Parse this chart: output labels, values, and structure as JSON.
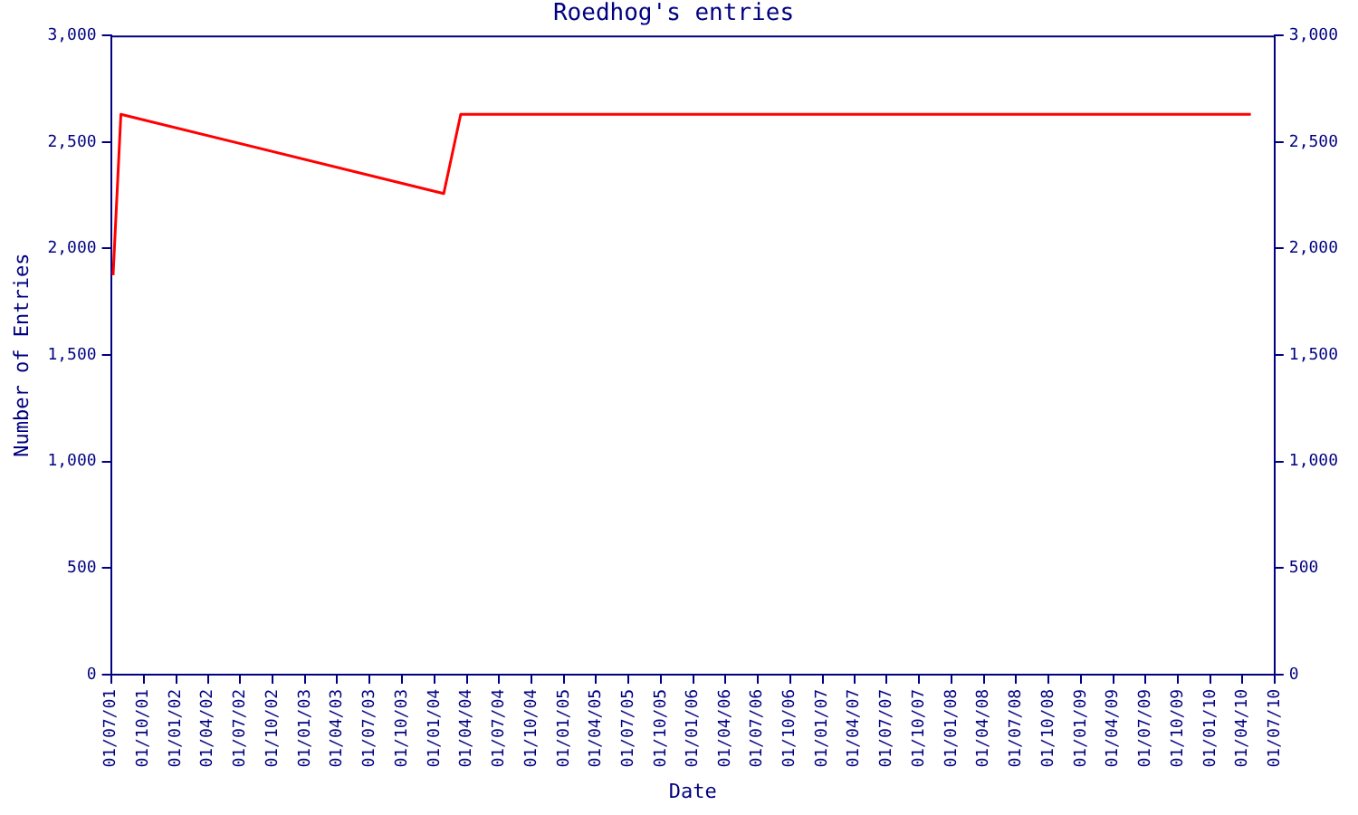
{
  "chart_data": {
    "type": "line",
    "title": "Roedhog's entries",
    "xlabel": "Date",
    "ylabel": "Number of Entries",
    "x": [
      "2001-07-07",
      "2001-07-29",
      "2004-01-27",
      "2004-03-15",
      "2010-04-25"
    ],
    "series": [
      {
        "color": "#ff0000",
        "values": [
          1875,
          2630,
          2258,
          2630,
          2630
        ]
      }
    ],
    "xlim": [
      "2001-07-01",
      "2010-07-01"
    ],
    "xticks": [
      {
        "value": "2001-07-01",
        "label": "01/07/01"
      },
      {
        "value": "2001-10-01",
        "label": "01/10/01"
      },
      {
        "value": "2002-01-01",
        "label": "01/01/02"
      },
      {
        "value": "2002-04-01",
        "label": "01/04/02"
      },
      {
        "value": "2002-07-01",
        "label": "01/07/02"
      },
      {
        "value": "2002-10-01",
        "label": "01/10/02"
      },
      {
        "value": "2003-01-01",
        "label": "01/01/03"
      },
      {
        "value": "2003-04-01",
        "label": "01/04/03"
      },
      {
        "value": "2003-07-01",
        "label": "01/07/03"
      },
      {
        "value": "2003-10-01",
        "label": "01/10/03"
      },
      {
        "value": "2004-01-01",
        "label": "01/01/04"
      },
      {
        "value": "2004-04-01",
        "label": "01/04/04"
      },
      {
        "value": "2004-07-01",
        "label": "01/07/04"
      },
      {
        "value": "2004-10-01",
        "label": "01/10/04"
      },
      {
        "value": "2005-01-01",
        "label": "01/01/05"
      },
      {
        "value": "2005-04-01",
        "label": "01/04/05"
      },
      {
        "value": "2005-07-01",
        "label": "01/07/05"
      },
      {
        "value": "2005-10-01",
        "label": "01/10/05"
      },
      {
        "value": "2006-01-01",
        "label": "01/01/06"
      },
      {
        "value": "2006-04-01",
        "label": "01/04/06"
      },
      {
        "value": "2006-07-01",
        "label": "01/07/06"
      },
      {
        "value": "2006-10-01",
        "label": "01/10/06"
      },
      {
        "value": "2007-01-01",
        "label": "01/01/07"
      },
      {
        "value": "2007-04-01",
        "label": "01/04/07"
      },
      {
        "value": "2007-07-01",
        "label": "01/07/07"
      },
      {
        "value": "2007-10-01",
        "label": "01/10/07"
      },
      {
        "value": "2008-01-01",
        "label": "01/01/08"
      },
      {
        "value": "2008-04-01",
        "label": "01/04/08"
      },
      {
        "value": "2008-07-01",
        "label": "01/07/08"
      },
      {
        "value": "2008-10-01",
        "label": "01/10/08"
      },
      {
        "value": "2009-01-01",
        "label": "01/01/09"
      },
      {
        "value": "2009-04-01",
        "label": "01/04/09"
      },
      {
        "value": "2009-07-01",
        "label": "01/07/09"
      },
      {
        "value": "2009-10-01",
        "label": "01/10/09"
      },
      {
        "value": "2010-01-01",
        "label": "01/01/10"
      },
      {
        "value": "2010-04-01",
        "label": "01/04/10"
      },
      {
        "value": "2010-07-01",
        "label": "01/07/10"
      }
    ],
    "ylim": [
      0,
      3000
    ],
    "yticks": [
      0,
      500,
      {
        "value": 1000,
        "label": "1,000"
      },
      {
        "value": 1500,
        "label": "1,500"
      },
      {
        "value": 2000,
        "label": "2,000"
      },
      {
        "value": 2500,
        "label": "2,500"
      },
      {
        "value": 3000,
        "label": "3,000"
      }
    ],
    "y2lim": [
      0,
      3000
    ],
    "y2ticks": [
      0,
      500,
      {
        "value": 1000,
        "label": "1,000"
      },
      {
        "value": 1500,
        "label": "1,500"
      },
      {
        "value": 2000,
        "label": "2,000"
      },
      {
        "value": 2500,
        "label": "2,500"
      },
      {
        "value": 3000,
        "label": "3,000"
      }
    ],
    "grid": false,
    "legend": false,
    "marker": "none",
    "line_style": "solid"
  }
}
